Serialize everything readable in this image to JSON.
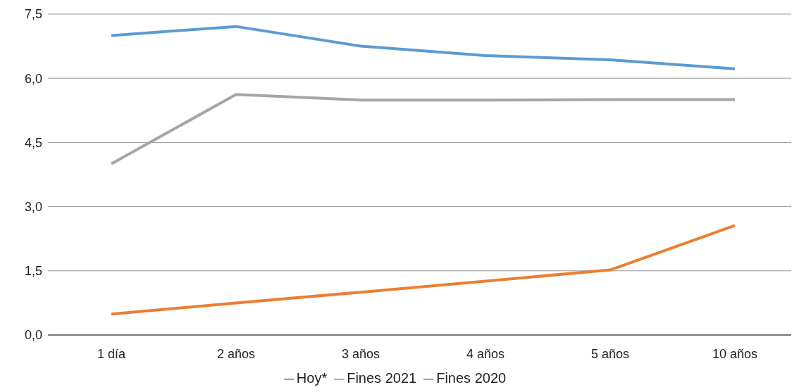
{
  "chart_data": {
    "type": "line",
    "categories": [
      "1 día",
      "2 años",
      "3 años",
      "4 años",
      "5 años",
      "10 años"
    ],
    "series": [
      {
        "name": "Hoy*",
        "color": "#5b9bd5",
        "values": [
          7.0,
          7.21,
          6.75,
          6.53,
          6.43,
          6.22
        ]
      },
      {
        "name": "Fines 2021",
        "color": "#a5a5a5",
        "values": [
          4.0,
          5.62,
          5.49,
          5.49,
          5.5,
          5.5
        ]
      },
      {
        "name": "Fines 2020",
        "color": "#ed7d31",
        "values": [
          0.49,
          0.75,
          1.0,
          1.26,
          1.52,
          2.56
        ]
      }
    ],
    "ylim": [
      0,
      7.5
    ],
    "yticks": [
      {
        "value": 0,
        "label": "0,0"
      },
      {
        "value": 1.5,
        "label": "1,5"
      },
      {
        "value": 3,
        "label": "3,0"
      },
      {
        "value": 4.5,
        "label": "4,5"
      },
      {
        "value": 6,
        "label": "6,0"
      },
      {
        "value": 7.5,
        "label": "7,5"
      }
    ],
    "grid": "y",
    "legend": "bottom",
    "marker": "none",
    "line_style": "solid"
  }
}
